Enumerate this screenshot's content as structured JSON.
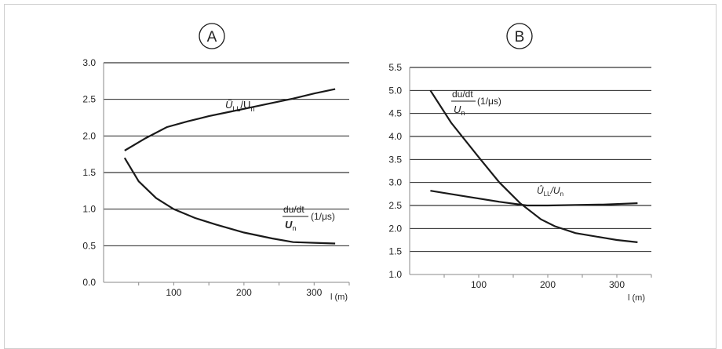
{
  "colors": {
    "line": "#1a1a1a",
    "grid": "#000000",
    "axis": "#8a8a8a",
    "frame": "#cfcfcf"
  },
  "chart_data": [
    {
      "type": "line",
      "panel_label": "A",
      "xlabel": "l (m)",
      "x_ticks": [
        100,
        200,
        300
      ],
      "xlim": [
        0,
        350
      ],
      "ylim": [
        0,
        3
      ],
      "y_ticks": [
        "0.0",
        "0.5",
        "1.0",
        "1.5",
        "2.0",
        "2.5",
        "3.0"
      ],
      "grid": "horizontal",
      "series": [
        {
          "label_main": "Û",
          "label_sub": "LL",
          "label_tail": "/U",
          "label_sub2": "n",
          "x": [
            30,
            60,
            90,
            120,
            150,
            180,
            210,
            240,
            270,
            300,
            330
          ],
          "y": [
            1.8,
            1.97,
            2.12,
            2.2,
            2.27,
            2.33,
            2.39,
            2.45,
            2.51,
            2.58,
            2.64
          ]
        },
        {
          "label_num": "du/dt",
          "label_den": "U",
          "label_den_sub": "n",
          "label_unit": "(1/μs)",
          "x": [
            30,
            50,
            75,
            100,
            130,
            160,
            200,
            240,
            270,
            300,
            330
          ],
          "y": [
            1.7,
            1.38,
            1.15,
            1.0,
            0.88,
            0.79,
            0.68,
            0.6,
            0.55,
            0.54,
            0.53
          ]
        }
      ]
    },
    {
      "type": "line",
      "panel_label": "B",
      "xlabel": "l (m)",
      "x_ticks": [
        100,
        200,
        300
      ],
      "xlim": [
        0,
        350
      ],
      "ylim": [
        1,
        5.5
      ],
      "y_ticks": [
        "1.0",
        "1.5",
        "2.0",
        "2.5",
        "3.0",
        "3.5",
        "4.0",
        "4.5",
        "5.0",
        "5.5"
      ],
      "grid": "horizontal",
      "series": [
        {
          "label_num": "du/dt",
          "label_den": "U",
          "label_den_sub": "n",
          "label_unit": "(1/μs)",
          "x": [
            30,
            60,
            100,
            130,
            160,
            190,
            210,
            240,
            280,
            300,
            330
          ],
          "y": [
            5.0,
            4.3,
            3.55,
            3.0,
            2.55,
            2.2,
            2.05,
            1.9,
            1.8,
            1.75,
            1.7
          ]
        },
        {
          "label_main": "Û",
          "label_sub": "LL",
          "label_tail": "/U",
          "label_sub2": "n",
          "x": [
            30,
            80,
            130,
            170,
            200,
            240,
            280,
            330
          ],
          "y": [
            2.82,
            2.7,
            2.58,
            2.5,
            2.5,
            2.51,
            2.52,
            2.55
          ]
        }
      ]
    }
  ]
}
